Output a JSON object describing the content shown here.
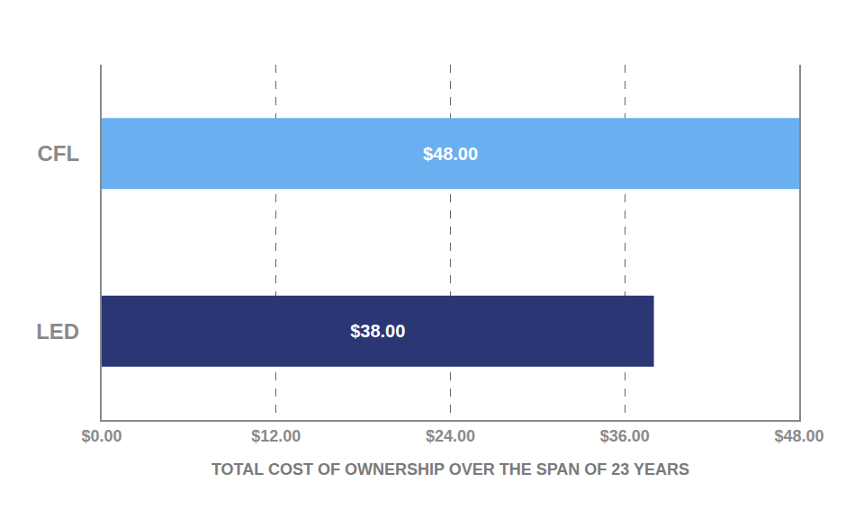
{
  "chart_data": {
    "type": "bar",
    "orientation": "horizontal",
    "categories": [
      "CFL",
      "LED"
    ],
    "values": [
      48,
      38
    ],
    "value_labels": [
      "$48.00",
      "$38.00"
    ],
    "data_labels": true,
    "colors": [
      "#6aaff0",
      "#2b3675"
    ],
    "x_label": "TOTAL COST OF OWNERSHIP OVER THE SPAN OF 23 YEARS",
    "xlim": [
      0,
      48
    ],
    "xticks": [
      {
        "value": 0,
        "label": "$0.00"
      },
      {
        "value": 12,
        "label": "$12.00"
      },
      {
        "value": 24,
        "label": "$24.00"
      },
      {
        "value": 36,
        "label": "$36.00"
      },
      {
        "value": 48,
        "label": "$48.00"
      }
    ],
    "grid": true
  }
}
